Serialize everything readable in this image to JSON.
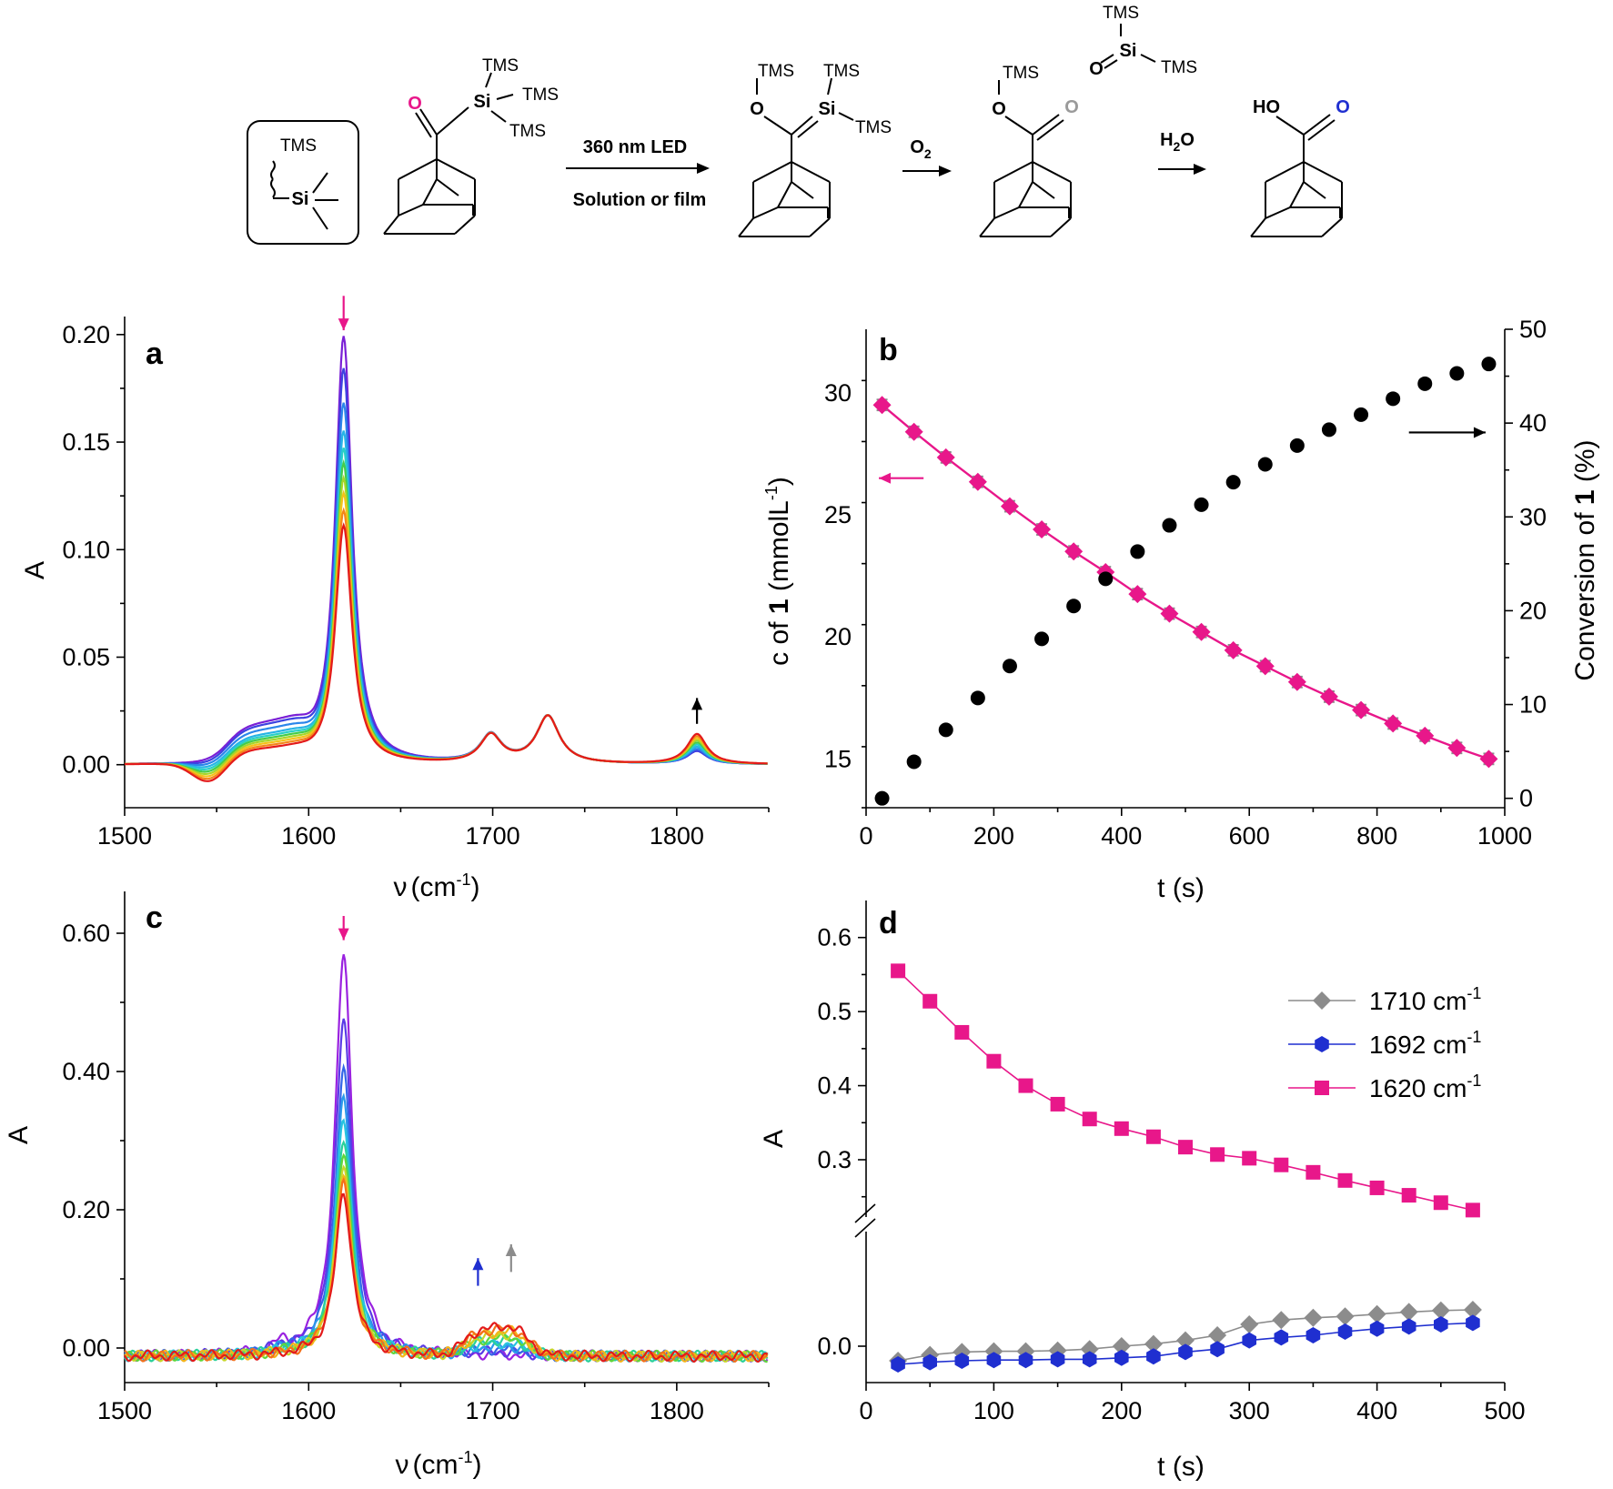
{
  "scheme": {
    "tms_box_label": "TMS",
    "atom_TMS": "TMS",
    "atom_Si": "Si",
    "atom_O": "O",
    "atom_HO": "HO",
    "step1_top": "360 nm LED",
    "step1_bottom": "Solution or film",
    "step2_reagent": "O",
    "step2_sub": "2",
    "step3_reagent": "H",
    "step3_sub": "2",
    "step3_tail": "O",
    "colors": {
      "pink_O": "#e8178a",
      "gray_O": "#9a9a9a",
      "blue_O": "#1f2fd0"
    }
  },
  "chart_data": [
    {
      "panel": "a",
      "type": "line",
      "ylabel": "A",
      "xlabel_symbol": "ν",
      "xlabel_unit": "(cm",
      "xlabel_sup": "-1",
      "xlabel_close": ")",
      "xlim": [
        1500,
        1850
      ],
      "ylim": [
        -0.02,
        0.205
      ],
      "xticks": [
        1500,
        1600,
        1700,
        1800
      ],
      "yticks": [
        0.0,
        0.05,
        0.1,
        0.15,
        0.2
      ],
      "ytick_labels": [
        "0.00",
        "0.05",
        "0.10",
        "0.15",
        "0.20"
      ],
      "peaks": [
        {
          "x": 1619,
          "width": 5.5
        },
        {
          "x": 1572,
          "width": 18
        },
        {
          "x": 1699,
          "width": 7
        },
        {
          "x": 1730,
          "width": 7.5
        },
        {
          "x": 1811,
          "width": 6.5
        },
        {
          "x": 1546,
          "width": 9
        }
      ],
      "series": [
        {
          "color": "#7a1fd6",
          "amps": [
            0.199,
            0.017,
            0.013,
            0.022,
            0.006,
            0.0
          ]
        },
        {
          "color": "#3c42e0",
          "amps": [
            0.184,
            0.016,
            0.013,
            0.022,
            0.006,
            -0.001
          ]
        },
        {
          "color": "#2b86ea",
          "amps": [
            0.168,
            0.014,
            0.013,
            0.022,
            0.007,
            -0.002
          ]
        },
        {
          "color": "#27b4e6",
          "amps": [
            0.155,
            0.012,
            0.013,
            0.022,
            0.008,
            -0.003
          ]
        },
        {
          "color": "#2ad0c7",
          "amps": [
            0.147,
            0.011,
            0.013,
            0.022,
            0.009,
            -0.004
          ]
        },
        {
          "color": "#45cc4a",
          "amps": [
            0.14,
            0.01,
            0.013,
            0.022,
            0.01,
            -0.005
          ]
        },
        {
          "color": "#a6d62a",
          "amps": [
            0.133,
            0.009,
            0.013,
            0.022,
            0.011,
            -0.006
          ]
        },
        {
          "color": "#f4c21a",
          "amps": [
            0.126,
            0.008,
            0.013,
            0.022,
            0.012,
            -0.007
          ]
        },
        {
          "color": "#f4861a",
          "amps": [
            0.118,
            0.007,
            0.013,
            0.022,
            0.013,
            -0.008
          ]
        },
        {
          "color": "#e31a1a",
          "amps": [
            0.111,
            0.006,
            0.013,
            0.022,
            0.014,
            -0.009
          ]
        }
      ],
      "arrows": [
        {
          "x": 1619,
          "y_from": 0.218,
          "y_to": 0.202,
          "color": "#e8178a"
        },
        {
          "x": 1811,
          "y_from": 0.019,
          "y_to": 0.031,
          "color": "#000000"
        }
      ]
    },
    {
      "panel": "b",
      "type": "scatter",
      "xlabel": "t (s)",
      "ylabel_left_pre": "c of ",
      "ylabel_left_bold": "1",
      "ylabel_left_post": " (mmolL",
      "ylabel_left_sup": "-1",
      "ylabel_left_close": ")",
      "ylabel_right_pre": "Conversion of ",
      "ylabel_right_bold": "1",
      "ylabel_right_post": " (%)",
      "xlim": [
        0,
        1000
      ],
      "ylim_left": [
        13,
        32.6
      ],
      "ylim_right": [
        -1,
        50
      ],
      "xticks": [
        0,
        200,
        400,
        600,
        800,
        1000
      ],
      "yticks_left": [
        15,
        20,
        25,
        30
      ],
      "yticks_right": [
        0,
        10,
        20,
        30,
        40,
        50
      ],
      "x": [
        25,
        75,
        125,
        175,
        225,
        275,
        325,
        375,
        425,
        475,
        525,
        575,
        625,
        675,
        725,
        775,
        825,
        875,
        925,
        975
      ],
      "series": [
        {
          "axis": "left",
          "color": "#e8178a",
          "marker": "diamond",
          "values": [
            29.5,
            28.4,
            27.35,
            26.35,
            25.35,
            24.4,
            23.5,
            22.65,
            21.75,
            20.95,
            20.2,
            19.45,
            18.8,
            18.15,
            17.55,
            17.0,
            16.45,
            15.95,
            15.45,
            15.0
          ]
        },
        {
          "axis": "right",
          "color": "#000000",
          "marker": "circle",
          "values": [
            0,
            3.9,
            7.3,
            10.7,
            14.1,
            17.0,
            20.5,
            23.4,
            26.3,
            29.1,
            31.3,
            33.7,
            35.6,
            37.6,
            39.3,
            40.9,
            42.6,
            44.2,
            45.3,
            46.3
          ]
        }
      ],
      "error_bar": 0.22,
      "arrows": [
        {
          "axis": "left",
          "x_from": 90,
          "x_to": 20,
          "y": 26.5,
          "color": "#e8178a"
        },
        {
          "axis": "right",
          "x_from": 850,
          "x_to": 970,
          "y": 39,
          "color": "#000000"
        }
      ]
    },
    {
      "panel": "c",
      "type": "line",
      "ylabel": "A",
      "xlabel_symbol": "ν",
      "xlabel_unit": "(cm",
      "xlabel_sup": "-1",
      "xlabel_close": ")",
      "xlim": [
        1500,
        1850
      ],
      "ylim": [
        -0.05,
        0.65
      ],
      "xticks": [
        1500,
        1600,
        1700,
        1800
      ],
      "yticks": [
        0.0,
        0.2,
        0.4,
        0.6
      ],
      "ytick_labels": [
        "0.00",
        "0.20",
        "0.40",
        "0.60"
      ],
      "peaks": [
        {
          "x": 1619,
          "width": 5.5
        },
        {
          "x": 1692,
          "width": 8
        },
        {
          "x": 1710,
          "width": 9
        },
        {
          "x": 1585,
          "width": 5
        }
      ],
      "series": [
        {
          "color": "#9a22e0",
          "amps": [
            0.58,
            0.0,
            0.0,
            0.012
          ]
        },
        {
          "color": "#5a3ae6",
          "amps": [
            0.49,
            0.003,
            0.004,
            0.01
          ]
        },
        {
          "color": "#3466e8",
          "amps": [
            0.415,
            0.006,
            0.008,
            0.008
          ]
        },
        {
          "color": "#2a9aea",
          "amps": [
            0.37,
            0.009,
            0.012,
            0.006
          ]
        },
        {
          "color": "#27c4e0",
          "amps": [
            0.345,
            0.012,
            0.016,
            0.005
          ]
        },
        {
          "color": "#2ad09a",
          "amps": [
            0.315,
            0.015,
            0.021,
            0.004
          ]
        },
        {
          "color": "#5fd63a",
          "amps": [
            0.29,
            0.018,
            0.025,
            0.003
          ]
        },
        {
          "color": "#c7d62a",
          "amps": [
            0.275,
            0.021,
            0.029,
            0.002
          ]
        },
        {
          "color": "#f4b41a",
          "amps": [
            0.26,
            0.024,
            0.033,
            0.001
          ]
        },
        {
          "color": "#f4701a",
          "amps": [
            0.248,
            0.027,
            0.037,
            0.0
          ]
        },
        {
          "color": "#e31a1a",
          "amps": [
            0.235,
            0.03,
            0.04,
            0.0
          ]
        }
      ],
      "arrows": [
        {
          "x": 1619,
          "y_from": 0.625,
          "y_to": 0.59,
          "color": "#e8178a"
        },
        {
          "x": 1692,
          "y_from": 0.09,
          "y_to": 0.13,
          "color": "#1f2fd0"
        },
        {
          "x": 1710,
          "y_from": 0.11,
          "y_to": 0.15,
          "color": "#8c8c8c"
        }
      ]
    },
    {
      "panel": "d",
      "type": "line",
      "ylabel": "A",
      "xlabel": "t (s)",
      "xlim": [
        0,
        500
      ],
      "xticks": [
        0,
        100,
        200,
        300,
        400,
        500
      ],
      "yticks_upper": [
        0.3,
        0.4,
        0.5,
        0.6
      ],
      "yticks_upper_labels": [
        "0.3",
        "0.4",
        "0.5",
        "0.6"
      ],
      "ylim_upper": [
        0.23,
        0.65
      ],
      "ytick_lower": 0.0,
      "ytick_lower_label": "0.0",
      "ylim_lower": [
        -0.05,
        0.15
      ],
      "x": [
        25,
        50,
        75,
        100,
        125,
        150,
        175,
        200,
        225,
        250,
        275,
        300,
        325,
        350,
        375,
        400,
        425,
        450,
        475
      ],
      "series": [
        {
          "name": "1710 cm",
          "sup": "-1",
          "color": "#8c8c8c",
          "marker": "diamond",
          "panel": "lower",
          "values": [
            -0.02,
            -0.012,
            -0.008,
            -0.007,
            -0.007,
            -0.006,
            -0.004,
            0.0,
            0.003,
            0.008,
            0.015,
            0.03,
            0.036,
            0.039,
            0.041,
            0.044,
            0.047,
            0.049,
            0.05
          ]
        },
        {
          "name": "1692 cm",
          "sup": "-1",
          "color": "#1f2fd0",
          "marker": "hexagon",
          "panel": "lower",
          "values": [
            -0.025,
            -0.022,
            -0.02,
            -0.019,
            -0.019,
            -0.018,
            -0.018,
            -0.016,
            -0.014,
            -0.008,
            -0.004,
            0.008,
            0.012,
            0.015,
            0.02,
            0.024,
            0.027,
            0.03,
            0.032
          ]
        },
        {
          "name": "1620 cm",
          "sup": "-1",
          "color": "#e8178a",
          "marker": "square",
          "panel": "upper",
          "values": [
            0.555,
            0.514,
            0.472,
            0.433,
            0.4,
            0.375,
            0.355,
            0.342,
            0.331,
            0.317,
            0.307,
            0.302,
            0.293,
            0.283,
            0.272,
            0.262,
            0.252,
            0.242,
            0.232
          ]
        }
      ],
      "legend_position": "top-right"
    }
  ],
  "panel_labels": [
    "a",
    "b",
    "c",
    "d"
  ]
}
